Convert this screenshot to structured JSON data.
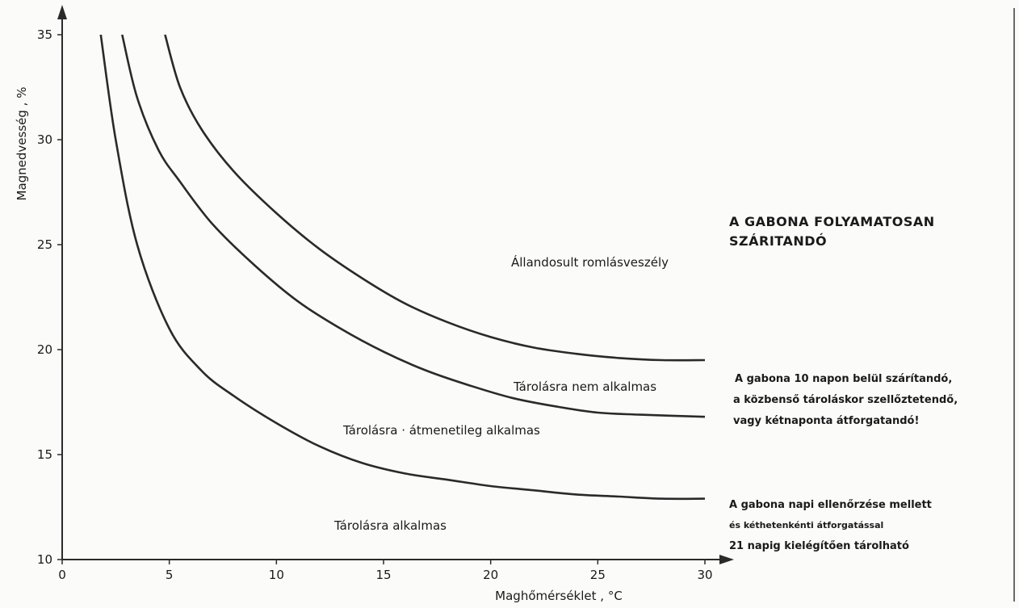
{
  "chart_data": {
    "type": "line",
    "title": "",
    "xlabel": "Maghőmérséklet , °C",
    "ylabel": "Magnedvesség , %",
    "xlim": [
      0,
      30
    ],
    "ylim": [
      10,
      35
    ],
    "x_ticks": [
      0,
      5,
      10,
      15,
      20,
      25,
      30
    ],
    "y_ticks": [
      10,
      15,
      20,
      25,
      30,
      35
    ],
    "x_tick_labels": [
      "0",
      "5",
      "10",
      "15",
      "20",
      "25",
      "30"
    ],
    "y_tick_labels": [
      "10",
      "15",
      "20",
      "25",
      "30",
      "35"
    ],
    "grid": false,
    "series": [
      {
        "x": [
          1.8,
          2.5,
          3.5,
          5,
          6.5,
          8,
          10,
          12,
          14,
          16,
          18,
          20,
          22,
          24,
          26,
          28,
          30
        ],
        "y": [
          35,
          30,
          25,
          21,
          19,
          17.8,
          16.5,
          15.4,
          14.6,
          14.1,
          13.8,
          13.5,
          13.3,
          13.1,
          13.0,
          12.9,
          12.9
        ]
      },
      {
        "x": [
          2.8,
          3.5,
          4.5,
          5.5,
          7,
          9,
          11,
          13,
          15,
          17,
          19,
          21,
          23,
          25,
          27,
          30
        ],
        "y": [
          35,
          32,
          29.5,
          28,
          26,
          24,
          22.3,
          21,
          19.9,
          19,
          18.3,
          17.7,
          17.3,
          17.0,
          16.9,
          16.8
        ]
      },
      {
        "x": [
          4.8,
          5.5,
          6.5,
          8,
          10,
          12,
          14,
          16,
          18,
          20,
          22,
          24,
          26,
          28,
          30
        ],
        "y": [
          35,
          32.5,
          30.5,
          28.5,
          26.5,
          24.8,
          23.4,
          22.2,
          21.3,
          20.6,
          20.1,
          19.8,
          19.6,
          19.5,
          19.5
        ]
      }
    ],
    "annotations": {
      "zone_1": "Állandosult romlásveszély",
      "zone_2": "Tárolásra nem alkalmas",
      "zone_3": "Tárolásra · átmenetileg alkalmas",
      "zone_4": "Tárolásra alkalmas",
      "note_1_line1": "A GABONA FOLYAMATOSAN",
      "note_1_line2": "SZÁRITANDÓ",
      "note_2_line1": "A gabona 10 napon belül szárítandó,",
      "note_2_line2": "a közbenső tároláskor szellőztetendő,",
      "note_2_line3": "vagy kétnaponta átforgatandó!",
      "note_3_line1": "A gabona napi ellenőrzése mellett",
      "note_3_line2": "és kéthetenkénti átforgatással",
      "note_3_line3": "21 napig kielégítően tárolható"
    }
  }
}
